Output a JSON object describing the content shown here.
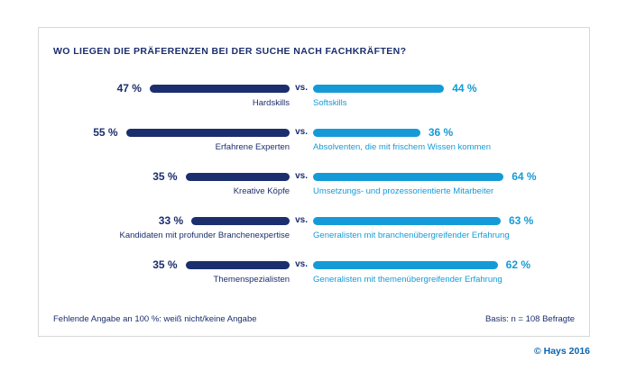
{
  "card": {
    "title": "WO LIEGEN DIE PRÄFERENZEN BEI DER SUCHE NACH FACHKRÄFTEN?",
    "footer_left": "Fehlende Angabe an 100 %: weiß nicht/keine Angabe",
    "footer_right": "Basis: n = 108 Befragte"
  },
  "page": {
    "copyright": "© Hays 2016"
  },
  "chart_data": {
    "type": "bar",
    "title": "WO LIEGEN DIE PRÄFERENZEN BEI DER SUCHE NACH FACHKRÄFTEN?",
    "unit": "%",
    "vs_label": "vs.",
    "value_suffix": " %",
    "axis_range_percent": [
      0,
      100
    ],
    "colors": {
      "left": "#1b2e6d",
      "right": "#149bd7"
    },
    "rows": [
      {
        "left_value": 47,
        "left_label": "Hardskills",
        "right_value": 44,
        "right_label": "Softskills"
      },
      {
        "left_value": 55,
        "left_label": "Erfahrene Experten",
        "right_value": 36,
        "right_label": "Absolventen, die mit frischem Wissen kommen"
      },
      {
        "left_value": 35,
        "left_label": "Kreative Köpfe",
        "right_value": 64,
        "right_label": "Umsetzungs- und prozessorientierte Mitarbeiter"
      },
      {
        "left_value": 33,
        "left_label": "Kandidaten mit profunder Branchenexpertise",
        "right_value": 63,
        "right_label": "Generalisten mit branchenübergreifender Erfahrung"
      },
      {
        "left_value": 35,
        "left_label": "Themenspezialisten",
        "right_value": 62,
        "right_label": "Generalisten mit themenübergreifender Erfahrung"
      }
    ]
  }
}
